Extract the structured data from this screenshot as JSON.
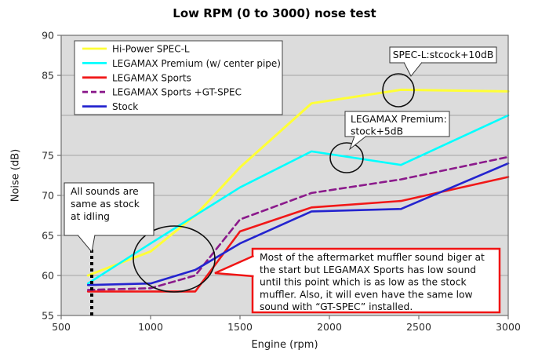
{
  "title": "Low RPM (0 to 3000) nose test",
  "chart_data": {
    "type": "line",
    "title": "Low RPM (0 to 3000) nose test",
    "xlabel": "Engine (rpm)",
    "ylabel": "Noise (dB)",
    "xlim": [
      500,
      3000
    ],
    "ylim": [
      55,
      90
    ],
    "x_ticks": [
      500,
      1000,
      1500,
      2000,
      2500,
      3000
    ],
    "y_gridline_step": 5,
    "y_tick_labels_shown": [
      90,
      85,
      75,
      70,
      65,
      60,
      55
    ],
    "grid": "horizontal-only",
    "legend_position": "top-left-inside",
    "plot_bg": "#dcdcdc",
    "x": [
      650,
      1000,
      1250,
      1500,
      1900,
      2400,
      3000
    ],
    "series": [
      {
        "name": "Hi-Power SPEC-L",
        "color": "#ffff36",
        "dash": "solid",
        "width": 3,
        "values": [
          60,
          63,
          67.5,
          73.5,
          81.5,
          83.2,
          83
        ]
      },
      {
        "name": "LEGAMAX Premium (w/ center pipe)",
        "color": "#00ffff",
        "dash": "solid",
        "width": 2.6,
        "values": [
          59,
          64,
          67.5,
          71,
          75.5,
          73.8,
          80
        ]
      },
      {
        "name": "LEGAMAX Sports",
        "color": "#f11818",
        "dash": "solid",
        "width": 2.6,
        "values": [
          58,
          58,
          58,
          65.5,
          68.5,
          69.3,
          72.3
        ]
      },
      {
        "name": "LEGAMAX Sports +GT-SPEC",
        "color": "#8b1a8b",
        "dash": "dashed",
        "width": 2.6,
        "values": [
          58.2,
          58.4,
          60,
          67,
          70.3,
          72,
          74.8
        ]
      },
      {
        "name": "Stock",
        "color": "#2424cf",
        "dash": "solid",
        "width": 2.6,
        "values": [
          58.8,
          59,
          60.7,
          64,
          68,
          68.3,
          74
        ]
      }
    ]
  },
  "annotations": {
    "spec_l": {
      "text": "SPEC-L:stcock+10dB"
    },
    "premium": {
      "lines": [
        "LEGAMAX Premium:",
        "stock+5dB"
      ]
    },
    "idle": {
      "lines": [
        "All sounds are",
        "same as stock",
        "at idling"
      ]
    },
    "sports_note": {
      "lines": [
        "Most of the aftermarket muffler sound biger at",
        "the start but LEGAMAX Sports has low sound",
        "until this point which is as low as the stock",
        "muffler. Also, it  will even have the same low",
        "sound with “GT-SPEC” installed."
      ],
      "border_color": "#f01414"
    }
  }
}
